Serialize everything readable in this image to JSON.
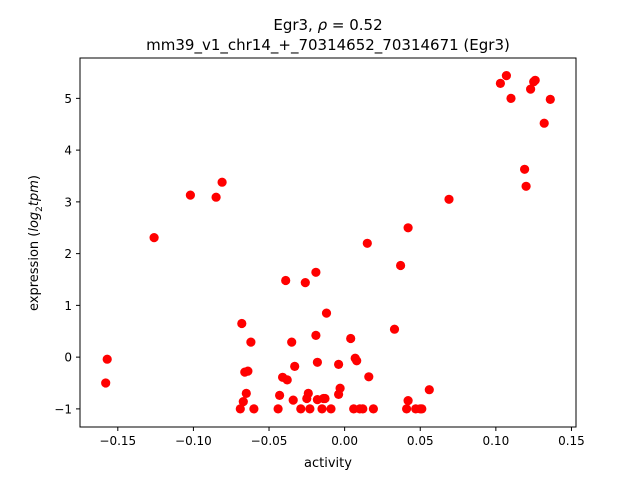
{
  "chart_data": {
    "type": "scatter",
    "title_line1_prefix": "Egr3, ",
    "title_line1_rho": "ρ",
    "title_line1_suffix": " = 0.52",
    "title_line2": "mm39_v1_chr14_+_70314652_70314671 (Egr3)",
    "xlabel": "activity",
    "ylabel_prefix": "expression (",
    "ylabel_math": "log",
    "ylabel_sub": "2",
    "ylabel_math2": "tpm",
    "ylabel_suffix": ")",
    "xlim": [
      -0.175,
      0.153
    ],
    "ylim": [
      -1.35,
      5.78
    ],
    "xticks": [
      -0.15,
      -0.1,
      -0.05,
      0.0,
      0.05,
      0.1,
      0.15
    ],
    "xtick_labels": [
      "−0.15",
      "−0.10",
      "−0.05",
      "0.00",
      "0.05",
      "0.10",
      "0.15"
    ],
    "yticks": [
      -1,
      0,
      1,
      2,
      3,
      4,
      5
    ],
    "ytick_labels": [
      "−1",
      "0",
      "1",
      "2",
      "3",
      "4",
      "5"
    ],
    "marker_color": "#ff0000",
    "points": [
      {
        "x": -0.158,
        "y": -0.5
      },
      {
        "x": -0.157,
        "y": -0.04
      },
      {
        "x": -0.126,
        "y": 2.31
      },
      {
        "x": -0.102,
        "y": 3.13
      },
      {
        "x": -0.085,
        "y": 3.09
      },
      {
        "x": -0.081,
        "y": 3.38
      },
      {
        "x": -0.069,
        "y": -1.0
      },
      {
        "x": -0.068,
        "y": 0.65
      },
      {
        "x": -0.067,
        "y": -0.86
      },
      {
        "x": -0.066,
        "y": -0.29
      },
      {
        "x": -0.065,
        "y": -0.7
      },
      {
        "x": -0.064,
        "y": -0.27
      },
      {
        "x": -0.062,
        "y": 0.29
      },
      {
        "x": -0.06,
        "y": -1.0
      },
      {
        "x": -0.044,
        "y": -1.0
      },
      {
        "x": -0.043,
        "y": -0.74
      },
      {
        "x": -0.041,
        "y": -0.39
      },
      {
        "x": -0.039,
        "y": 1.48
      },
      {
        "x": -0.038,
        "y": -0.44
      },
      {
        "x": -0.035,
        "y": 0.29
      },
      {
        "x": -0.034,
        "y": -0.83
      },
      {
        "x": -0.033,
        "y": -0.18
      },
      {
        "x": -0.029,
        "y": -1.0
      },
      {
        "x": -0.026,
        "y": 1.44
      },
      {
        "x": -0.025,
        "y": -0.8
      },
      {
        "x": -0.024,
        "y": -0.7
      },
      {
        "x": -0.023,
        "y": -1.0
      },
      {
        "x": -0.019,
        "y": 1.64
      },
      {
        "x": -0.019,
        "y": 0.42
      },
      {
        "x": -0.018,
        "y": -0.82
      },
      {
        "x": -0.018,
        "y": -0.1
      },
      {
        "x": -0.015,
        "y": -1.0
      },
      {
        "x": -0.014,
        "y": -0.8
      },
      {
        "x": -0.013,
        "y": -0.8
      },
      {
        "x": -0.012,
        "y": 0.85
      },
      {
        "x": -0.009,
        "y": -1.0
      },
      {
        "x": -0.004,
        "y": -0.14
      },
      {
        "x": -0.004,
        "y": -0.72
      },
      {
        "x": -0.003,
        "y": -0.6
      },
      {
        "x": 0.004,
        "y": 0.36
      },
      {
        "x": 0.006,
        "y": -1.0
      },
      {
        "x": 0.007,
        "y": -0.02
      },
      {
        "x": 0.008,
        "y": -0.07
      },
      {
        "x": 0.01,
        "y": -1.0
      },
      {
        "x": 0.012,
        "y": -1.0
      },
      {
        "x": 0.015,
        "y": 2.2
      },
      {
        "x": 0.016,
        "y": -0.38
      },
      {
        "x": 0.019,
        "y": -1.0
      },
      {
        "x": 0.033,
        "y": 0.54
      },
      {
        "x": 0.037,
        "y": 1.77
      },
      {
        "x": 0.041,
        "y": -1.0
      },
      {
        "x": 0.042,
        "y": -0.84
      },
      {
        "x": 0.042,
        "y": 2.5
      },
      {
        "x": 0.047,
        "y": -1.0
      },
      {
        "x": 0.05,
        "y": -1.0
      },
      {
        "x": 0.051,
        "y": -1.0
      },
      {
        "x": 0.056,
        "y": -0.63
      },
      {
        "x": 0.069,
        "y": 3.05
      },
      {
        "x": 0.103,
        "y": 5.29
      },
      {
        "x": 0.107,
        "y": 5.44
      },
      {
        "x": 0.11,
        "y": 5.0
      },
      {
        "x": 0.119,
        "y": 3.63
      },
      {
        "x": 0.12,
        "y": 3.3
      },
      {
        "x": 0.123,
        "y": 5.18
      },
      {
        "x": 0.125,
        "y": 5.32
      },
      {
        "x": 0.126,
        "y": 5.35
      },
      {
        "x": 0.132,
        "y": 4.52
      },
      {
        "x": 0.136,
        "y": 4.98
      }
    ]
  }
}
